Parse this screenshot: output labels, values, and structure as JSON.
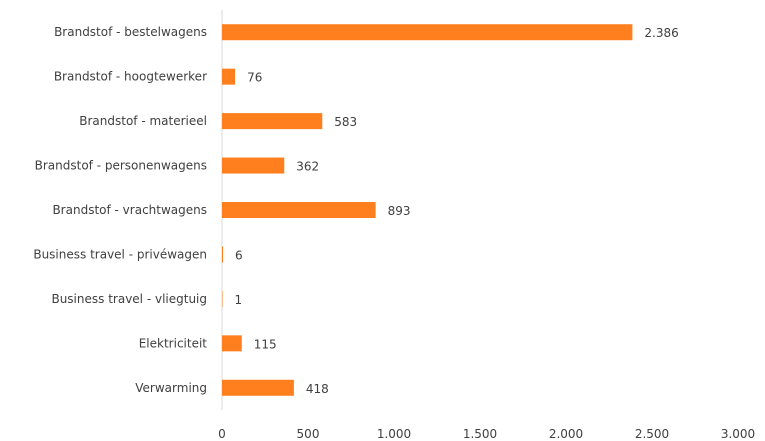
{
  "chart_data": {
    "type": "bar",
    "orientation": "horizontal",
    "categories": [
      "Brandstof - bestelwagens",
      "Brandstof - hoogtewerker",
      "Brandstof - materieel",
      "Brandstof - personenwagens",
      "Brandstof - vrachtwagens",
      "Business travel - privéwagen",
      "Business travel - vliegtuig",
      "Elektriciteit",
      "Verwarming"
    ],
    "values": [
      2386,
      76,
      583,
      362,
      893,
      6,
      1,
      115,
      418
    ],
    "value_labels": [
      "2.386",
      "76",
      "583",
      "362",
      "893",
      "6",
      "1",
      "115",
      "418"
    ],
    "xlim": [
      0,
      3000
    ],
    "x_ticks": [
      0,
      500,
      1000,
      1500,
      2000,
      2500,
      3000
    ],
    "x_tick_labels": [
      "0",
      "500",
      "1.000",
      "1.500",
      "2.000",
      "2.500",
      "3.000"
    ],
    "title": "",
    "xlabel": "",
    "ylabel": "",
    "grid": false,
    "legend": "none",
    "bar_color": "#ff7f1e",
    "axis_color": "#d9d9d9",
    "text_color": "#404040"
  }
}
